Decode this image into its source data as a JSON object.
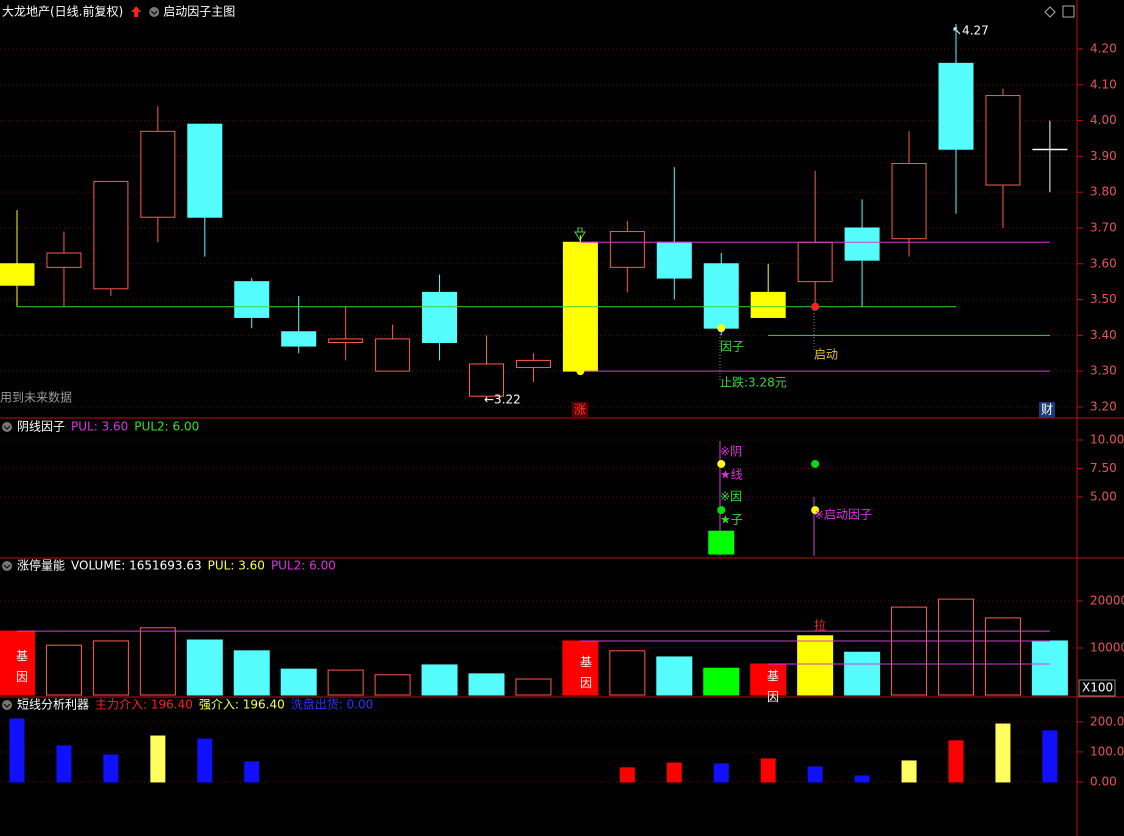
{
  "chart_data": [
    {
      "type": "candlestick",
      "title": "大龙地产(日线.前复权)",
      "legend": [
        {
          "text": "启动因子主图",
          "color": "#ffffff"
        }
      ],
      "open": [
        3.54,
        3.59,
        3.53,
        3.73,
        3.99,
        3.55,
        3.41,
        3.38,
        3.3,
        3.52,
        3.23,
        3.31,
        3.3,
        3.59,
        3.66,
        3.6,
        3.45,
        3.55,
        3.7,
        3.67,
        4.16,
        3.82,
        3.92
      ],
      "high": [
        3.75,
        3.69,
        3.83,
        4.04,
        3.99,
        3.56,
        3.51,
        3.48,
        3.43,
        3.57,
        3.4,
        3.35,
        3.68,
        3.72,
        3.87,
        3.63,
        3.6,
        3.86,
        3.78,
        3.97,
        4.27,
        4.09,
        4.0
      ],
      "low": [
        3.48,
        3.48,
        3.51,
        3.66,
        3.62,
        3.42,
        3.35,
        3.33,
        3.3,
        3.33,
        3.22,
        3.27,
        3.3,
        3.52,
        3.5,
        3.4,
        3.45,
        3.48,
        3.48,
        3.62,
        3.74,
        3.7,
        3.8
      ],
      "close": [
        3.6,
        3.63,
        3.83,
        3.97,
        3.73,
        3.45,
        3.37,
        3.39,
        3.39,
        3.38,
        3.32,
        3.33,
        3.66,
        3.69,
        3.56,
        3.42,
        3.52,
        3.66,
        3.61,
        3.88,
        3.92,
        4.07,
        3.92
      ],
      "colors": [
        "#ffff00",
        "#ff5a4a",
        "#ff5a4a",
        "#ff5a4a",
        "#54fcfc",
        "#54fcfc",
        "#54fcfc",
        "#ff5a4a",
        "#ff5a4a",
        "#54fcfc",
        "#ff5a4a",
        "#ff5a4a",
        "#ffff00",
        "#ff5a4a",
        "#54fcfc",
        "#54fcfc",
        "#ffff00",
        "#ff5a4a",
        "#54fcfc",
        "#ff5a4a",
        "#54fcfc",
        "#ff5a4a",
        "#ffffff"
      ],
      "fills": [
        "#ffff00",
        "#000000",
        "#000000",
        "#000000",
        "#54fcfc",
        "#54fcfc",
        "#54fcfc",
        "#000000",
        "#000000",
        "#54fcfc",
        "#000000",
        "#000000",
        "#ffff00",
        "#000000",
        "#54fcfc",
        "#54fcfc",
        "#ffff00",
        "#000000",
        "#54fcfc",
        "#000000",
        "#54fcfc",
        "#000000",
        "#ffffff"
      ],
      "ylim": [
        3.169,
        4.337
      ],
      "yticks": [
        {
          "value": 3.2,
          "label": "3.20"
        },
        {
          "value": 3.3,
          "label": "3.30"
        },
        {
          "value": 3.4,
          "label": "3.40"
        },
        {
          "value": 3.5,
          "label": "3.50"
        },
        {
          "value": 3.6,
          "label": "3.60"
        },
        {
          "value": 3.7,
          "label": "3.70"
        },
        {
          "value": 3.8,
          "label": "3.80"
        },
        {
          "value": 3.9,
          "label": "3.90"
        },
        {
          "value": 4.0,
          "label": "4.00"
        },
        {
          "value": 4.1,
          "label": "4.10"
        },
        {
          "value": 4.2,
          "label": "4.20"
        }
      ],
      "grid": true,
      "lines": [
        {
          "value": 3.48,
          "from": 0,
          "to": 20,
          "color": "#3cd63c"
        },
        {
          "value": 3.66,
          "from": 12,
          "to": 22,
          "color": "#d43cd4"
        },
        {
          "value": 3.3,
          "from": 12,
          "to": 22,
          "color": "#d43cd4"
        },
        {
          "value": 3.4,
          "from": 16,
          "to": 22,
          "color": "#3cd63c"
        }
      ],
      "points": [
        {
          "index": 12,
          "value": 3.3,
          "color": "#ffff00"
        },
        {
          "index": 15,
          "value": 3.42,
          "color": "#ffff00"
        },
        {
          "index": 17,
          "value": 3.48,
          "color": "#ff2020"
        }
      ],
      "annotations": [
        {
          "text": "↖4.27",
          "color": "#ffffff"
        },
        {
          "text": "←3.22",
          "color": "#ffffff"
        },
        {
          "text": "因子",
          "color": "#3cd63c"
        },
        {
          "text": "启动",
          "color": "#e0c030"
        },
        {
          "text": "止跌:3.28元",
          "color": "#3cd63c"
        },
        {
          "text": "涨",
          "color": "#ff3030"
        },
        {
          "text": "财",
          "color": "#ffffff"
        },
        {
          "text": "用到未来数据",
          "color": "#9a9a9a"
        }
      ]
    },
    {
      "type": "bar",
      "title": "阴线因子",
      "legend": [
        {
          "text": "PUL: 3.60",
          "color": "#e030e0"
        },
        {
          "text": "PUL2: 6.00",
          "color": "#30e030"
        }
      ],
      "values": [
        null,
        null,
        null,
        null,
        null,
        null,
        null,
        null,
        null,
        null,
        null,
        null,
        null,
        null,
        null,
        2.0,
        null,
        null,
        null,
        null,
        null,
        null,
        null
      ],
      "colors": [
        "#00ff00",
        "#00ff00",
        "#00ff00",
        "#00ff00",
        "#00ff00",
        "#00ff00",
        "#00ff00",
        "#00ff00",
        "#00ff00",
        "#00ff00",
        "#00ff00",
        "#00ff00",
        "#00ff00",
        "#00ff00",
        "#00ff00",
        "#00ff00",
        "#00ff00",
        "#00ff00",
        "#00ff00",
        "#00ff00",
        "#00ff00",
        "#00ff00",
        "#00ff00"
      ],
      "ylim": [
        -0.35,
        11.93
      ],
      "yticks": [
        {
          "value": 5,
          "label": "5.00"
        },
        {
          "value": 7.5,
          "label": "7.50"
        },
        {
          "value": 10,
          "label": "10.00"
        }
      ],
      "grid": true,
      "points": [
        {
          "index": 15,
          "value": 7.9,
          "color": "#ffff00"
        },
        {
          "index": 15,
          "value": 3.85,
          "color": "#00e000"
        },
        {
          "index": 17,
          "value": 7.9,
          "color": "#00e000"
        },
        {
          "index": 17,
          "value": 3.85,
          "color": "#ffff00"
        }
      ],
      "annotations": [
        {
          "text": "※阴",
          "color": "#e030e0"
        },
        {
          "text": "★线",
          "color": "#e030e0"
        },
        {
          "text": "※因",
          "color": "#30e030"
        },
        {
          "text": "★子",
          "color": "#30e030"
        },
        {
          "text": "※启动因子",
          "color": "#e030e0"
        }
      ]
    },
    {
      "type": "bar",
      "title": "涨停量能",
      "legend": [
        {
          "text": "VOLUME: 1651693.63",
          "color": "#ffffff"
        },
        {
          "text": "PUL: 3.60",
          "color": "#ffff40"
        },
        {
          "text": "PUL2: 6.00",
          "color": "#e030e0"
        }
      ],
      "values": [
        13600,
        10600,
        11500,
        14300,
        11700,
        9400,
        5500,
        5300,
        4300,
        6400,
        4500,
        3400,
        11500,
        9400,
        8100,
        5700,
        6600,
        12600,
        9100,
        18700,
        20400,
        16400,
        11500
      ],
      "colors": [
        "#ff0000",
        "#ff5a4a",
        "#ff5a4a",
        "#ff5a4a",
        "#54fcfc",
        "#54fcfc",
        "#54fcfc",
        "#ff5a4a",
        "#ff5a4a",
        "#54fcfc",
        "#54fcfc",
        "#ff5a4a",
        "#ff0000",
        "#ff5a4a",
        "#54fcfc",
        "#00ff00",
        "#ff0000",
        "#ffff00",
        "#54fcfc",
        "#ff5a4a",
        "#ff5a4a",
        "#ff5a4a",
        "#54fcfc"
      ],
      "fills": [
        "#ff0000",
        "#000000",
        "#000000",
        "#000000",
        "#54fcfc",
        "#54fcfc",
        "#54fcfc",
        "#000000",
        "#000000",
        "#54fcfc",
        "#54fcfc",
        "#000000",
        "#ff0000",
        "#000000",
        "#54fcfc",
        "#00ff00",
        "#ff0000",
        "#ffff00",
        "#54fcfc",
        "#000000",
        "#000000",
        "#000000",
        "#54fcfc"
      ],
      "ylim": [
        -426,
        29150
      ],
      "yticks": [
        10000,
        20000
      ],
      "grid": true,
      "lines": [
        {
          "value": 13600,
          "from": 0,
          "to": 22,
          "color": "#d43cd4"
        },
        {
          "value": 11500,
          "from": 12,
          "to": 22,
          "color": "#d43cd4"
        },
        {
          "value": 6600,
          "from": 16,
          "to": 22,
          "color": "#d43cd4"
        }
      ],
      "annotations": [
        {
          "text": "基因",
          "color": "#ffffff"
        },
        {
          "text": "基因",
          "color": "#ffffff"
        },
        {
          "text": "基因",
          "color": "#ffffff"
        },
        {
          "text": "拉",
          "color": "#ff2020"
        },
        {
          "text": "X100",
          "color": "#ffffff"
        }
      ]
    },
    {
      "type": "bar",
      "title": "短线分析利器",
      "legend": [
        {
          "text": "主力介入: 196.40",
          "color": "#ff2020"
        },
        {
          "text": "强介入: 196.40",
          "color": "#ffff40"
        },
        {
          "text": "洗盘出货: 0.00",
          "color": "#3030ff"
        }
      ],
      "values": [
        210,
        120,
        90,
        153,
        143,
        67,
        null,
        null,
        null,
        null,
        null,
        null,
        null,
        47,
        63,
        60,
        77,
        50,
        20,
        70,
        137,
        193,
        170
      ],
      "colors": [
        "#1010ff",
        "#1010ff",
        "#1010ff",
        "#ffff60",
        "#1010ff",
        "#1010ff",
        "#1010ff",
        "#1010ff",
        "#1010ff",
        "#1010ff",
        "#1010ff",
        "#1010ff",
        "#1010ff",
        "#ff0000",
        "#ff0000",
        "#1010ff",
        "#ff0000",
        "#1010ff",
        "#1010ff",
        "#ffff60",
        "#ff0000",
        "#ffff60",
        "#1010ff"
      ],
      "ylim": [
        -180,
        283
      ],
      "yticks": [
        {
          "value": 0,
          "label": "0.00"
        },
        {
          "value": 100,
          "label": "100.00"
        },
        {
          "value": 200,
          "label": "200.00"
        }
      ],
      "grid": true
    }
  ]
}
